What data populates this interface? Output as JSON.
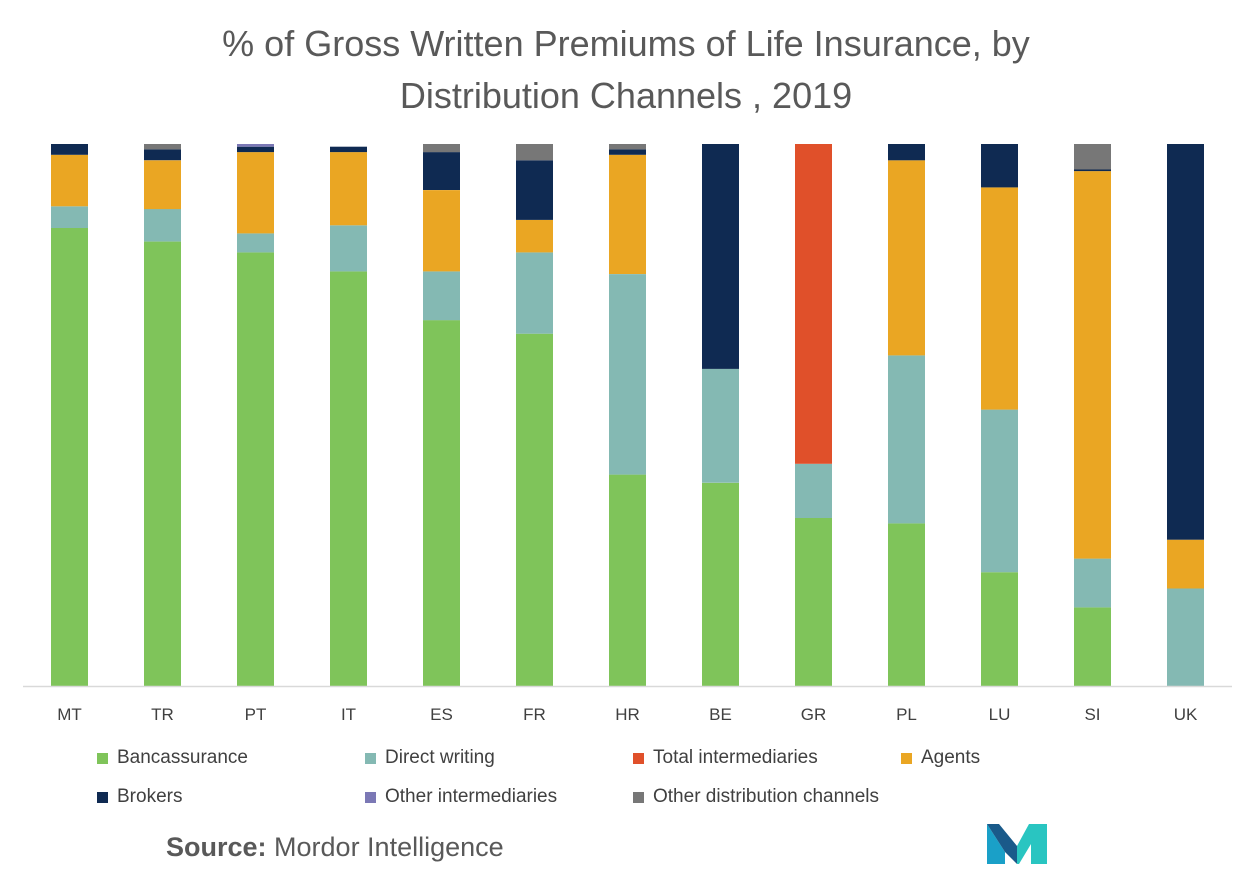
{
  "chart_data": {
    "type": "bar",
    "stacked": true,
    "title_lines": [
      "% of Gross Written Premiums of Life Insurance, by",
      "Distribution Channels , 2019"
    ],
    "xlabel": "",
    "ylabel": "",
    "ylim": [
      0,
      100
    ],
    "grid": false,
    "legend_position": "bottom",
    "categories": [
      "MT",
      "TR",
      "PT",
      "IT",
      "ES",
      "FR",
      "HR",
      "BE",
      "GR",
      "PL",
      "LU",
      "SI",
      "UK"
    ],
    "series": [
      {
        "name": "Bancassurance",
        "color": "#7fc45a",
        "values": [
          84.5,
          82,
          80,
          76.5,
          67.5,
          65,
          39,
          37.5,
          31,
          30,
          21,
          14.5,
          0
        ]
      },
      {
        "name": "Direct writing",
        "color": "#84b9b3",
        "values": [
          4,
          6,
          3.5,
          8.5,
          9,
          15,
          37,
          21,
          10,
          31,
          30,
          9,
          18
        ]
      },
      {
        "name": "Total intermediaries",
        "color": "#e0502a",
        "values": [
          0,
          0,
          0,
          0,
          0,
          0,
          0,
          0,
          59,
          0,
          0,
          0,
          0
        ]
      },
      {
        "name": "Agents",
        "color": "#eaa623",
        "values": [
          9.5,
          9,
          15,
          13.5,
          15,
          6,
          22,
          0,
          0,
          36,
          41,
          71.5,
          9
        ]
      },
      {
        "name": "Brokers",
        "color": "#0f2a52",
        "values": [
          2,
          2,
          1,
          1,
          7,
          11,
          1,
          41.5,
          0,
          3,
          8,
          0.3,
          73
        ]
      },
      {
        "name": "Other intermediaries",
        "color": "#7b78b5",
        "values": [
          0,
          0,
          0.5,
          0,
          0,
          0,
          0,
          0,
          0,
          0,
          0,
          0,
          0
        ]
      },
      {
        "name": "Other distribution channels",
        "color": "#777777",
        "values": [
          0,
          1,
          0,
          0,
          1.5,
          3,
          1,
          0,
          0,
          0,
          0,
          4.7,
          0
        ]
      }
    ]
  },
  "source": {
    "label": "Source:",
    "text": " Mordor Intelligence"
  },
  "logo": {
    "name": "mordor-intelligence-logo",
    "colors": [
      "#1aa0c8",
      "#29c5c1",
      "#1a5a8a"
    ]
  }
}
